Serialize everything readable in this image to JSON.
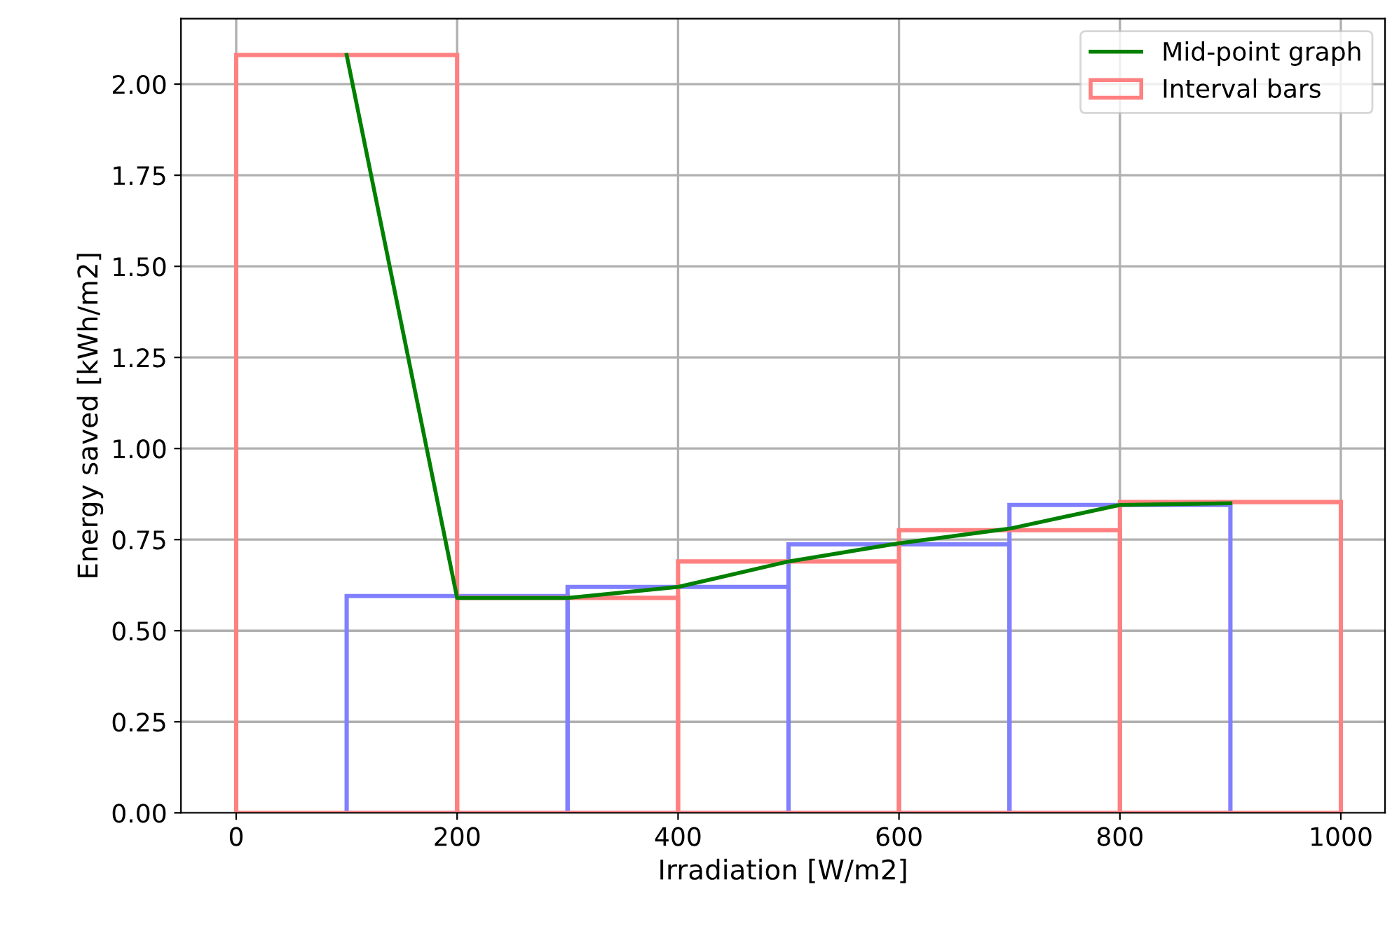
{
  "chart_data": {
    "type": "histogram",
    "xlabel": "Irradiation [W/m2]",
    "ylabel": "Energy saved [kWh/m2]",
    "xlim": [
      -50,
      1040
    ],
    "ylim": [
      0,
      2.18
    ],
    "xticks": [
      0,
      200,
      400,
      600,
      800,
      1000
    ],
    "yticks": [
      {
        "value": 0,
        "label": "0.00"
      },
      {
        "value": 0.25,
        "label": "0.25"
      },
      {
        "value": 0.5,
        "label": "0.50"
      },
      {
        "value": 0.75,
        "label": "0.75"
      },
      {
        "value": 1.0,
        "label": "1.00"
      },
      {
        "value": 1.25,
        "label": "1.25"
      },
      {
        "value": 1.5,
        "label": "1.50"
      },
      {
        "value": 1.75,
        "label": "1.75"
      },
      {
        "value": 2.0,
        "label": "2.00"
      }
    ],
    "grid": true,
    "legend": "top right",
    "series": [
      {
        "color": "#8080ff",
        "bins": [
          100,
          300,
          500,
          700,
          900
        ],
        "values": [
          0.595,
          0.62,
          0.737,
          0.845
        ]
      },
      {
        "name": "Interval bars",
        "color": "#ff8080",
        "bins": [
          0,
          200,
          400,
          600,
          800,
          1000
        ],
        "values": [
          2.08,
          0.59,
          0.69,
          0.776,
          0.853
        ]
      },
      {
        "type": "line",
        "name": "Mid-point graph",
        "color": "#008000",
        "x": [
          100,
          200,
          300,
          400,
          500,
          600,
          700,
          800,
          900
        ],
        "values": [
          2.08,
          0.59,
          0.59,
          0.62,
          0.69,
          0.74,
          0.78,
          0.845,
          0.85
        ]
      }
    ]
  }
}
